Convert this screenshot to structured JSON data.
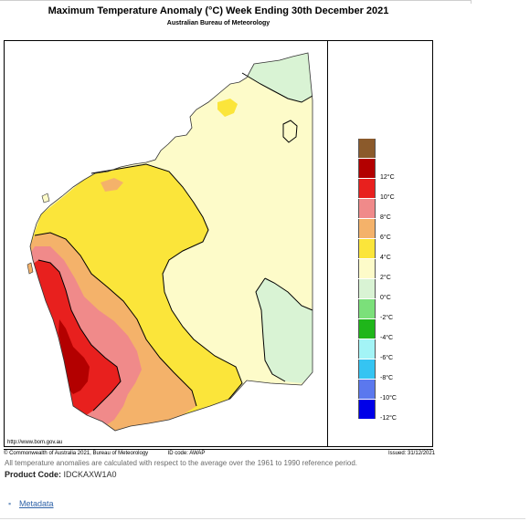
{
  "title": "Maximum Temperature Anomaly (°C)    Week Ending 30th December 2021",
  "subtitle": "Australian Bureau of Meteorology",
  "map_url": "http://www.bom.gov.au",
  "footer": {
    "copyright": "© Commonwealth of Australia 2021, Bureau of Meteorology",
    "id_code": "ID code: AWAP",
    "issued": "Issued: 31/12/2021"
  },
  "note": "All temperature anomalies are calculated with respect to the average over the 1961 to 1990 reference period.",
  "product_code": {
    "label": "Product Code:",
    "value": "IDCKAXW1A0"
  },
  "metadata_link": "Metadata",
  "legend": [
    {
      "label": "",
      "color": "#8b5a2b"
    },
    {
      "label": "12°C",
      "color": "#b30000"
    },
    {
      "label": "10°C",
      "color": "#e8201e"
    },
    {
      "label": "8°C",
      "color": "#f08a8a"
    },
    {
      "label": "6°C",
      "color": "#f4b26a"
    },
    {
      "label": "4°C",
      "color": "#fbe53a"
    },
    {
      "label": "2°C",
      "color": "#fdfbc9"
    },
    {
      "label": "0°C",
      "color": "#d9f3d4"
    },
    {
      "label": "-2°C",
      "color": "#7be07a"
    },
    {
      "label": "-4°C",
      "color": "#1fb61a"
    },
    {
      "label": "-6°C",
      "color": "#a3f4f6"
    },
    {
      "label": "-8°C",
      "color": "#35c4f2"
    },
    {
      "label": "-10°C",
      "color": "#5b78ee"
    },
    {
      "label": "-12°C",
      "color": "#0000e8"
    }
  ]
}
